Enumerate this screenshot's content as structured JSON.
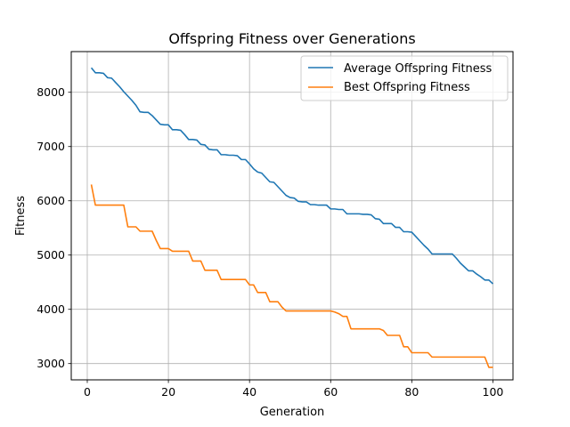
{
  "chart_data": {
    "type": "line",
    "title": "Offspring Fitness over Generations",
    "xlabel": "Generation",
    "ylabel": "Fitness",
    "xlim": [
      -3.95,
      104.95
    ],
    "ylim": [
      2700,
      8750
    ],
    "xticks": [
      0,
      20,
      40,
      60,
      80,
      100
    ],
    "yticks": [
      3000,
      4000,
      5000,
      6000,
      7000,
      8000
    ],
    "grid": true,
    "legend_position": "top-right",
    "series": [
      {
        "name": "Average Offspring Fitness",
        "color": "#1f77b4",
        "x": [
          1,
          2,
          3,
          4,
          5,
          6,
          7,
          8,
          9,
          10,
          11,
          12,
          13,
          14,
          15,
          16,
          17,
          18,
          19,
          20,
          21,
          22,
          23,
          24,
          25,
          26,
          27,
          28,
          29,
          30,
          31,
          32,
          33,
          34,
          35,
          36,
          37,
          38,
          39,
          40,
          41,
          42,
          43,
          44,
          45,
          46,
          47,
          48,
          49,
          50,
          51,
          52,
          53,
          54,
          55,
          56,
          57,
          58,
          59,
          60,
          61,
          62,
          63,
          64,
          65,
          66,
          67,
          68,
          69,
          70,
          71,
          72,
          73,
          74,
          75,
          76,
          77,
          78,
          79,
          80,
          81,
          82,
          83,
          84,
          85,
          86,
          87,
          88,
          89,
          90,
          91,
          92,
          93,
          94,
          95,
          96,
          97,
          98,
          99,
          100
        ],
        "y": [
          8450,
          8360,
          8360,
          8350,
          8270,
          8260,
          8180,
          8100,
          8010,
          7930,
          7850,
          7760,
          7640,
          7630,
          7630,
          7570,
          7490,
          7410,
          7400,
          7400,
          7310,
          7310,
          7300,
          7220,
          7130,
          7130,
          7120,
          7040,
          7030,
          6950,
          6940,
          6940,
          6850,
          6850,
          6840,
          6840,
          6830,
          6760,
          6760,
          6680,
          6590,
          6530,
          6510,
          6430,
          6350,
          6340,
          6260,
          6180,
          6100,
          6060,
          6050,
          5990,
          5980,
          5980,
          5930,
          5930,
          5920,
          5920,
          5920,
          5850,
          5850,
          5840,
          5840,
          5760,
          5760,
          5760,
          5760,
          5750,
          5750,
          5740,
          5670,
          5660,
          5580,
          5580,
          5580,
          5510,
          5510,
          5430,
          5430,
          5420,
          5340,
          5260,
          5180,
          5110,
          5020,
          5020,
          5020,
          5020,
          5020,
          5020,
          4940,
          4850,
          4780,
          4710,
          4710,
          4650,
          4600,
          4540,
          4540,
          4470
        ]
      },
      {
        "name": "Best Offspring Fitness",
        "color": "#ff7f0e",
        "x": [
          1,
          2,
          3,
          4,
          5,
          6,
          7,
          8,
          9,
          10,
          11,
          12,
          13,
          14,
          15,
          16,
          17,
          18,
          19,
          20,
          21,
          22,
          23,
          24,
          25,
          26,
          27,
          28,
          29,
          30,
          31,
          32,
          33,
          34,
          35,
          36,
          37,
          38,
          39,
          40,
          41,
          42,
          43,
          44,
          45,
          46,
          47,
          48,
          49,
          50,
          51,
          52,
          53,
          54,
          55,
          56,
          57,
          58,
          59,
          60,
          61,
          62,
          63,
          64,
          65,
          66,
          67,
          68,
          69,
          70,
          71,
          72,
          73,
          74,
          75,
          76,
          77,
          78,
          79,
          80,
          81,
          82,
          83,
          84,
          85,
          86,
          87,
          88,
          89,
          90,
          91,
          92,
          93,
          94,
          95,
          96,
          97,
          98,
          99,
          100
        ],
        "y": [
          6300,
          5920,
          5920,
          5920,
          5920,
          5920,
          5920,
          5920,
          5920,
          5520,
          5520,
          5520,
          5440,
          5440,
          5440,
          5440,
          5270,
          5120,
          5120,
          5120,
          5070,
          5070,
          5070,
          5070,
          5070,
          4890,
          4890,
          4890,
          4720,
          4720,
          4720,
          4720,
          4550,
          4550,
          4550,
          4550,
          4550,
          4550,
          4550,
          4450,
          4450,
          4310,
          4310,
          4310,
          4140,
          4140,
          4140,
          4040,
          3970,
          3970,
          3970,
          3970,
          3970,
          3970,
          3970,
          3970,
          3970,
          3970,
          3970,
          3970,
          3950,
          3920,
          3870,
          3870,
          3640,
          3640,
          3640,
          3640,
          3640,
          3640,
          3640,
          3640,
          3610,
          3520,
          3520,
          3520,
          3520,
          3310,
          3310,
          3200,
          3200,
          3200,
          3200,
          3200,
          3120,
          3120,
          3120,
          3120,
          3120,
          3120,
          3120,
          3120,
          3120,
          3120,
          3120,
          3120,
          3120,
          3120,
          2930,
          2930
        ]
      }
    ]
  }
}
